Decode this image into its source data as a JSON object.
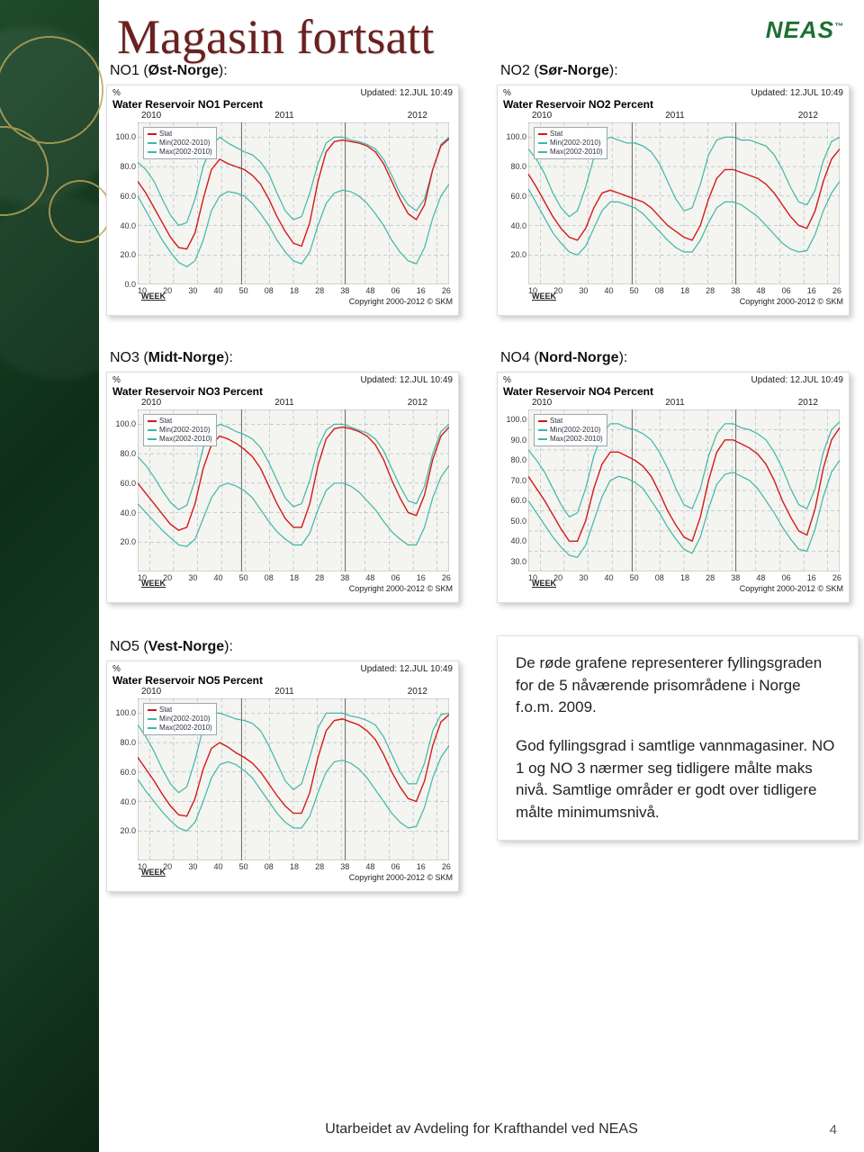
{
  "logo": "NEAS",
  "title": "Magasin fortsatt",
  "footer": "Utarbeidet av Avdeling for Krafthandel ved NEAS",
  "page_number": "4",
  "labels": {
    "no1": {
      "prefix": "NO1 (",
      "bold": "Øst-Norge",
      "suffix": "):"
    },
    "no2": {
      "prefix": "NO2 (",
      "bold": "Sør-Norge",
      "suffix": "):"
    },
    "no3": {
      "prefix": "NO3 (",
      "bold": "Midt-Norge",
      "suffix": "):"
    },
    "no4": {
      "prefix": "NO4 (",
      "bold": "Nord-Norge",
      "suffix": "):"
    },
    "no5": {
      "prefix": "NO5 (",
      "bold": "Vest-Norge",
      "suffix": "):"
    }
  },
  "description": {
    "p1": "De røde grafene representerer fyllingsgraden for de 5 nåværende prisområdene i Norge f.o.m. 2009.",
    "p2": "God fyllingsgrad i samtlige vannmagasiner. NO 1 og NO 3 nærmer seg tidligere målte maks nivå. Samtlige områder er godt over tidligere målte minimumsnivå."
  },
  "chart_common": {
    "percent_label": "%",
    "updated": "Updated: 12.JUL 10:49",
    "years": [
      "2010",
      "2011",
      "2012"
    ],
    "week_label": "WEEK",
    "copyright": "Copyright 2000-2012 © SKM",
    "x_ticks": [
      "10",
      "20",
      "30",
      "40",
      "50",
      "08",
      "18",
      "28",
      "38",
      "48",
      "06",
      "16",
      "26"
    ],
    "legend": {
      "stat": "Stat",
      "min": "Min(2002-2010)",
      "max": "Max(2002-2010)"
    },
    "colors": {
      "stat": "#d11b1b",
      "minmax": "#3fb7a7",
      "grid": "#9aaab5",
      "bg": "#f4f4f0"
    },
    "grid_dash": "4 3",
    "line_width": 1.2
  },
  "charts": {
    "no1": {
      "title": "Water Reservoir NO1 Percent",
      "ylim": [
        0,
        110
      ],
      "ytick_step": 20,
      "y_ticks": [
        "0.0",
        "20.0",
        "40.0",
        "60.0",
        "80.0",
        "100.0"
      ],
      "series": {
        "max": [
          83,
          78,
          70,
          58,
          47,
          40,
          42,
          58,
          80,
          94,
          100,
          96,
          93,
          90,
          88,
          83,
          75,
          62,
          50,
          44,
          46,
          62,
          82,
          96,
          100,
          100,
          98,
          97,
          95,
          92,
          85,
          74,
          62,
          54,
          50,
          58,
          78,
          95,
          100
        ],
        "min": [
          60,
          50,
          40,
          30,
          22,
          15,
          12,
          16,
          30,
          50,
          60,
          63,
          62,
          60,
          55,
          48,
          40,
          30,
          22,
          16,
          14,
          22,
          40,
          55,
          62,
          64,
          63,
          60,
          55,
          48,
          40,
          30,
          22,
          16,
          14,
          25,
          45,
          60,
          68
        ],
        "stat": [
          70,
          62,
          52,
          42,
          32,
          25,
          24,
          35,
          58,
          78,
          85,
          82,
          80,
          78,
          74,
          68,
          58,
          46,
          36,
          28,
          26,
          42,
          70,
          90,
          97,
          98,
          97,
          96,
          94,
          90,
          82,
          70,
          58,
          48,
          44,
          54,
          78,
          94,
          99
        ]
      }
    },
    "no2": {
      "title": "Water Reservoir NO2 Percent",
      "ylim": [
        0,
        110
      ],
      "ytick_step": 20,
      "y_ticks": [
        "20.0",
        "40.0",
        "60.0",
        "80.0",
        "100.0"
      ],
      "series": {
        "max": [
          92,
          85,
          75,
          62,
          52,
          46,
          50,
          66,
          86,
          97,
          100,
          98,
          96,
          96,
          94,
          90,
          82,
          70,
          58,
          50,
          52,
          68,
          88,
          98,
          100,
          100,
          98,
          98,
          96,
          94,
          88,
          78,
          66,
          56,
          54,
          64,
          84,
          97,
          100
        ],
        "min": [
          65,
          55,
          45,
          35,
          28,
          22,
          20,
          26,
          38,
          50,
          56,
          56,
          54,
          52,
          48,
          42,
          36,
          30,
          25,
          22,
          22,
          30,
          42,
          52,
          56,
          56,
          54,
          50,
          46,
          40,
          34,
          28,
          24,
          22,
          23,
          34,
          50,
          62,
          70
        ],
        "stat": [
          75,
          66,
          56,
          46,
          38,
          32,
          30,
          38,
          52,
          62,
          64,
          62,
          60,
          58,
          56,
          52,
          46,
          40,
          36,
          32,
          30,
          40,
          58,
          72,
          78,
          78,
          76,
          74,
          72,
          68,
          62,
          54,
          46,
          40,
          38,
          50,
          70,
          85,
          92
        ]
      }
    },
    "no3": {
      "title": "Water Reservoir NO3 Percent",
      "ylim": [
        0,
        110
      ],
      "ytick_step": 20,
      "y_ticks": [
        "20.0",
        "40.0",
        "60.0",
        "80.0",
        "100.0"
      ],
      "series": {
        "max": [
          78,
          72,
          64,
          55,
          47,
          42,
          45,
          62,
          84,
          96,
          100,
          98,
          95,
          93,
          90,
          84,
          74,
          62,
          50,
          44,
          46,
          62,
          84,
          96,
          100,
          100,
          98,
          96,
          94,
          90,
          82,
          70,
          58,
          48,
          46,
          58,
          80,
          95,
          100
        ],
        "min": [
          46,
          40,
          34,
          28,
          23,
          18,
          17,
          22,
          36,
          50,
          58,
          60,
          58,
          55,
          50,
          42,
          34,
          27,
          22,
          18,
          18,
          26,
          42,
          55,
          60,
          60,
          58,
          54,
          48,
          42,
          34,
          27,
          22,
          18,
          18,
          30,
          50,
          64,
          72
        ],
        "stat": [
          60,
          53,
          46,
          39,
          32,
          28,
          30,
          46,
          70,
          86,
          92,
          90,
          87,
          83,
          78,
          70,
          58,
          46,
          36,
          30,
          30,
          46,
          72,
          90,
          97,
          98,
          97,
          95,
          92,
          86,
          76,
          62,
          50,
          40,
          38,
          52,
          76,
          92,
          98
        ]
      }
    },
    "no4": {
      "title": "Water Reservoir NO4 Percent",
      "ylim": [
        25,
        105
      ],
      "ytick_step": 10,
      "y_ticks": [
        "30.0",
        "40.0",
        "50.0",
        "60.0",
        "70.0",
        "80.0",
        "90.0",
        "100.0"
      ],
      "series": {
        "max": [
          85,
          80,
          74,
          66,
          58,
          52,
          54,
          66,
          82,
          93,
          98,
          98,
          96,
          95,
          93,
          90,
          84,
          76,
          66,
          58,
          56,
          66,
          82,
          93,
          98,
          98,
          96,
          95,
          93,
          90,
          84,
          76,
          66,
          58,
          56,
          66,
          84,
          95,
          99
        ],
        "min": [
          60,
          54,
          48,
          42,
          37,
          33,
          32,
          38,
          50,
          62,
          70,
          72,
          71,
          69,
          66,
          60,
          54,
          47,
          41,
          36,
          34,
          42,
          56,
          68,
          73,
          74,
          72,
          70,
          66,
          60,
          54,
          47,
          41,
          36,
          35,
          46,
          62,
          74,
          80
        ],
        "stat": [
          72,
          66,
          60,
          53,
          46,
          40,
          40,
          50,
          66,
          78,
          84,
          84,
          82,
          80,
          77,
          72,
          64,
          55,
          48,
          42,
          40,
          52,
          70,
          84,
          90,
          90,
          88,
          86,
          83,
          78,
          70,
          60,
          52,
          45,
          43,
          56,
          76,
          90,
          96
        ]
      }
    },
    "no5": {
      "title": "Water Reservoir NO5 Percent",
      "ylim": [
        0,
        110
      ],
      "ytick_step": 20,
      "y_ticks": [
        "20.0",
        "40.0",
        "60.0",
        "80.0",
        "100.0"
      ],
      "series": {
        "max": [
          92,
          84,
          74,
          62,
          52,
          46,
          50,
          68,
          90,
          100,
          100,
          98,
          96,
          95,
          93,
          88,
          78,
          66,
          54,
          48,
          52,
          70,
          90,
          100,
          100,
          100,
          98,
          97,
          95,
          92,
          84,
          72,
          60,
          52,
          52,
          66,
          88,
          99,
          100
        ],
        "min": [
          55,
          47,
          40,
          33,
          27,
          22,
          20,
          26,
          40,
          56,
          65,
          67,
          65,
          61,
          56,
          48,
          40,
          32,
          26,
          22,
          22,
          30,
          46,
          60,
          67,
          68,
          66,
          62,
          56,
          48,
          40,
          32,
          26,
          22,
          23,
          36,
          56,
          70,
          78
        ],
        "stat": [
          70,
          62,
          54,
          45,
          37,
          31,
          30,
          42,
          62,
          76,
          80,
          77,
          73,
          70,
          66,
          60,
          52,
          44,
          37,
          32,
          32,
          46,
          70,
          88,
          95,
          96,
          94,
          92,
          88,
          82,
          72,
          60,
          50,
          42,
          40,
          54,
          78,
          94,
          99
        ]
      }
    }
  }
}
